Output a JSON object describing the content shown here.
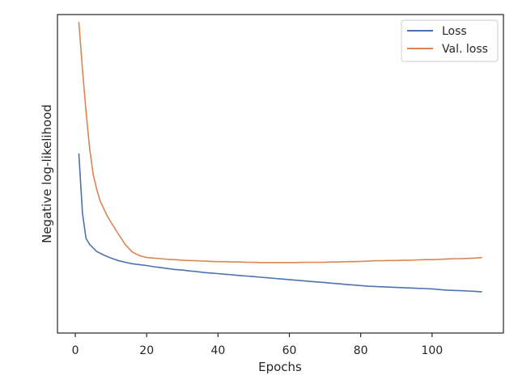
{
  "chart_data": {
    "type": "line",
    "title": "",
    "xlabel": "Epochs",
    "ylabel": "Negative log-likelihood",
    "xlim": [
      -5,
      120
    ],
    "ylim": [
      0,
      1
    ],
    "xticks": [
      0,
      20,
      40,
      60,
      80,
      100
    ],
    "yticks_shown": false,
    "grid": false,
    "legend_position": "top-right",
    "series": [
      {
        "name": "Loss",
        "color": "#4c72b0",
        "x": [
          1,
          2,
          3,
          4,
          5,
          6,
          7,
          8,
          9,
          10,
          12,
          14,
          16,
          18,
          20,
          22,
          24,
          26,
          28,
          30,
          32,
          34,
          36,
          38,
          40,
          42,
          44,
          46,
          48,
          50,
          52,
          54,
          56,
          58,
          60,
          62,
          64,
          66,
          68,
          70,
          72,
          74,
          76,
          78,
          80,
          82,
          84,
          86,
          88,
          90,
          92,
          94,
          96,
          98,
          100,
          102,
          104,
          106,
          108,
          110,
          112,
          114
        ],
        "y": [
          0.56,
          0.36,
          0.276,
          0.256,
          0.244,
          0.232,
          0.226,
          0.22,
          0.215,
          0.21,
          0.202,
          0.196,
          0.191,
          0.188,
          0.185,
          0.181,
          0.178,
          0.175,
          0.172,
          0.17,
          0.167,
          0.165,
          0.162,
          0.16,
          0.158,
          0.156,
          0.154,
          0.152,
          0.15,
          0.148,
          0.146,
          0.144,
          0.142,
          0.14,
          0.138,
          0.136,
          0.134,
          0.132,
          0.13,
          0.128,
          0.126,
          0.124,
          0.122,
          0.12,
          0.118,
          0.116,
          0.115,
          0.114,
          0.113,
          0.112,
          0.111,
          0.11,
          0.109,
          0.108,
          0.107,
          0.105,
          0.103,
          0.102,
          0.101,
          0.1,
          0.099,
          0.097
        ]
      },
      {
        "name": "Val. loss",
        "color": "#dd8452",
        "x": [
          1,
          2,
          3,
          4,
          5,
          6,
          7,
          8,
          9,
          10,
          12,
          14,
          16,
          18,
          20,
          22,
          24,
          26,
          28,
          30,
          32,
          34,
          36,
          38,
          40,
          42,
          44,
          46,
          48,
          50,
          52,
          54,
          56,
          58,
          60,
          62,
          64,
          66,
          68,
          70,
          72,
          74,
          76,
          78,
          80,
          82,
          84,
          86,
          88,
          90,
          92,
          94,
          96,
          98,
          100,
          102,
          104,
          106,
          108,
          110,
          112,
          114
        ],
        "y": [
          1.0,
          0.84,
          0.7,
          0.578,
          0.49,
          0.44,
          0.4,
          0.375,
          0.35,
          0.33,
          0.292,
          0.255,
          0.23,
          0.218,
          0.212,
          0.21,
          0.208,
          0.206,
          0.205,
          0.203,
          0.202,
          0.201,
          0.2,
          0.199,
          0.198,
          0.198,
          0.197,
          0.197,
          0.196,
          0.196,
          0.195,
          0.195,
          0.195,
          0.195,
          0.195,
          0.195,
          0.196,
          0.196,
          0.196,
          0.196,
          0.197,
          0.197,
          0.198,
          0.198,
          0.199,
          0.2,
          0.201,
          0.201,
          0.202,
          0.202,
          0.203,
          0.203,
          0.204,
          0.205,
          0.205,
          0.206,
          0.207,
          0.208,
          0.208,
          0.209,
          0.21,
          0.212
        ]
      }
    ]
  }
}
